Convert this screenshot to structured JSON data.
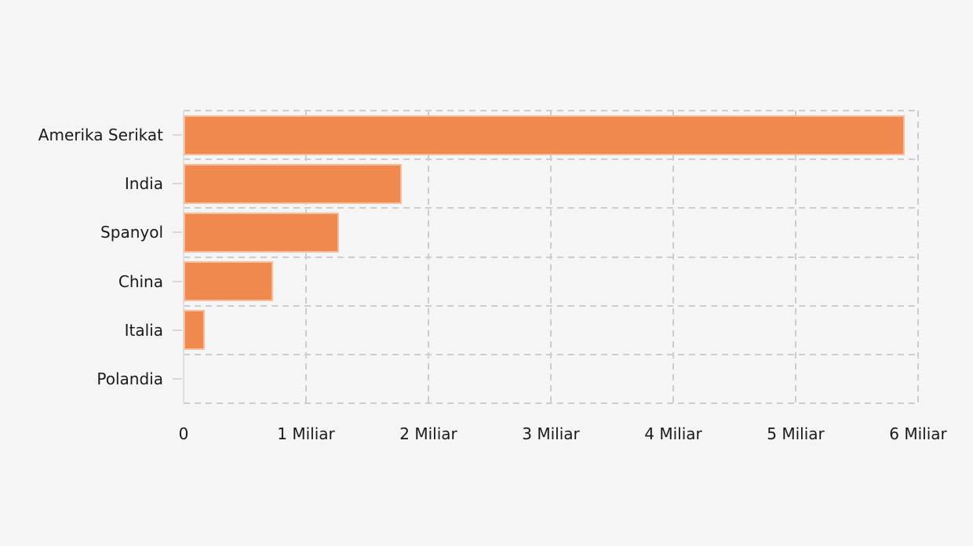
{
  "page": {
    "background": "#f5f5f5"
  },
  "chart_data": {
    "type": "bar",
    "orientation": "horizontal",
    "title": "",
    "xlabel": "",
    "ylabel": "",
    "legend": "none",
    "grid": "dashed",
    "categories": [
      "Amerika Serikat",
      "India",
      "Spanyol",
      "China",
      "Italia",
      "Polandia"
    ],
    "values": [
      5.89,
      1.78,
      1.27,
      0.73,
      0.17,
      0
    ],
    "unit": "Miliar",
    "xlim": [
      0,
      6
    ],
    "x_ticks": [
      {
        "value": 0,
        "label": "0"
      },
      {
        "value": 1,
        "label": "1 Miliar"
      },
      {
        "value": 2,
        "label": "2 Miliar"
      },
      {
        "value": 3,
        "label": "3 Miliar"
      },
      {
        "value": 4,
        "label": "4 Miliar"
      },
      {
        "value": 5,
        "label": "5 Miliar"
      },
      {
        "value": 6,
        "label": "6 Miliar"
      }
    ],
    "colors": {
      "bar": "#f0894d",
      "grid": "#cdcdcd",
      "axis_line": "#e0e0e0",
      "text": "#1a1a1a",
      "background": "#f5f5f5"
    }
  }
}
